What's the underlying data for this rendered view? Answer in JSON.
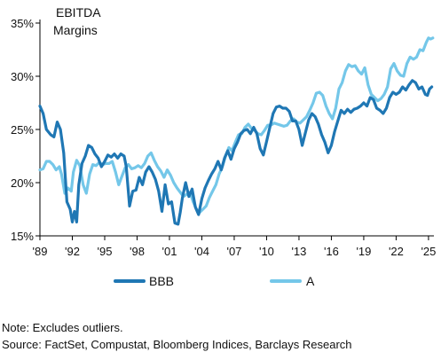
{
  "colors": {
    "background": "#ffffff",
    "axis": "#000000",
    "text": "#111111"
  },
  "notes": {
    "note": "Note: Excludes outliers.",
    "source": "Source: FactSet, Compustat, Bloomberg Indices, Barclays Research"
  },
  "chart_data": {
    "type": "line",
    "ylabel": "EBITDA Margins",
    "ylabel_lines": [
      "EBITDA",
      "Margins"
    ],
    "xlabel": "",
    "xlim": [
      1989,
      2025.5
    ],
    "ylim": [
      15,
      35
    ],
    "y_ticks": [
      15,
      20,
      25,
      30,
      35
    ],
    "y_tick_labels": [
      "15%",
      "20%",
      "25%",
      "30%",
      "35%"
    ],
    "x_ticks": [
      1989,
      1992,
      1995,
      1998,
      2001,
      2004,
      2007,
      2010,
      2013,
      2016,
      2019,
      2022,
      2025
    ],
    "x_tick_labels": [
      "'89",
      "'92",
      "'95",
      "'98",
      "'01",
      "'04",
      "'07",
      "'10",
      "'13",
      "'16",
      "'19",
      "'22",
      "'25"
    ],
    "grid": false,
    "legend": "bottom-center",
    "series": [
      {
        "name": "BBB",
        "color": "#1f77b4",
        "points": [
          [
            1989.0,
            27.2
          ],
          [
            1989.3,
            26.5
          ],
          [
            1989.6,
            25.0
          ],
          [
            1990.0,
            24.5
          ],
          [
            1990.3,
            24.3
          ],
          [
            1990.6,
            25.7
          ],
          [
            1990.9,
            25.0
          ],
          [
            1991.2,
            22.8
          ],
          [
            1991.5,
            18.2
          ],
          [
            1991.8,
            17.5
          ],
          [
            1992.0,
            16.3
          ],
          [
            1992.2,
            17.3
          ],
          [
            1992.4,
            16.3
          ],
          [
            1992.6,
            19.8
          ],
          [
            1992.9,
            21.8
          ],
          [
            1993.2,
            22.5
          ],
          [
            1993.5,
            23.5
          ],
          [
            1993.8,
            23.3
          ],
          [
            1994.1,
            22.7
          ],
          [
            1994.4,
            22.3
          ],
          [
            1994.7,
            21.5
          ],
          [
            1995.0,
            22.0
          ],
          [
            1995.3,
            22.6
          ],
          [
            1995.6,
            22.4
          ],
          [
            1995.9,
            22.7
          ],
          [
            1996.2,
            22.3
          ],
          [
            1996.5,
            22.7
          ],
          [
            1996.8,
            22.5
          ],
          [
            1997.0,
            21.5
          ],
          [
            1997.3,
            17.8
          ],
          [
            1997.6,
            19.2
          ],
          [
            1997.9,
            19.3
          ],
          [
            1998.2,
            20.5
          ],
          [
            1998.5,
            19.8
          ],
          [
            1998.8,
            21.0
          ],
          [
            1999.1,
            21.5
          ],
          [
            1999.4,
            21.0
          ],
          [
            1999.7,
            20.3
          ],
          [
            2000.0,
            19.2
          ],
          [
            2000.3,
            17.3
          ],
          [
            2000.6,
            19.8
          ],
          [
            2000.9,
            18.0
          ],
          [
            2001.2,
            18.2
          ],
          [
            2001.5,
            16.2
          ],
          [
            2001.8,
            16.1
          ],
          [
            2002.0,
            17.2
          ],
          [
            2002.2,
            18.6
          ],
          [
            2002.5,
            20.0
          ],
          [
            2002.8,
            18.7
          ],
          [
            2003.1,
            19.4
          ],
          [
            2003.4,
            17.7
          ],
          [
            2003.7,
            17.0
          ],
          [
            2004.0,
            18.5
          ],
          [
            2004.3,
            19.5
          ],
          [
            2004.6,
            20.2
          ],
          [
            2004.9,
            20.8
          ],
          [
            2005.2,
            21.3
          ],
          [
            2005.5,
            22.0
          ],
          [
            2005.8,
            21.2
          ],
          [
            2006.1,
            22.3
          ],
          [
            2006.4,
            23.0
          ],
          [
            2006.7,
            22.2
          ],
          [
            2007.0,
            23.2
          ],
          [
            2007.3,
            23.8
          ],
          [
            2007.6,
            24.6
          ],
          [
            2007.9,
            24.9
          ],
          [
            2008.2,
            25.0
          ],
          [
            2008.5,
            24.6
          ],
          [
            2008.8,
            25.2
          ],
          [
            2009.1,
            24.6
          ],
          [
            2009.4,
            23.2
          ],
          [
            2009.7,
            22.6
          ],
          [
            2010.0,
            23.9
          ],
          [
            2010.3,
            25.2
          ],
          [
            2010.6,
            26.5
          ],
          [
            2010.9,
            27.1
          ],
          [
            2011.2,
            27.2
          ],
          [
            2011.5,
            27.0
          ],
          [
            2011.8,
            27.0
          ],
          [
            2012.1,
            26.7
          ],
          [
            2012.4,
            25.8
          ],
          [
            2012.7,
            25.8
          ],
          [
            2013.0,
            25.0
          ],
          [
            2013.3,
            23.5
          ],
          [
            2013.6,
            24.7
          ],
          [
            2013.9,
            25.9
          ],
          [
            2014.2,
            26.5
          ],
          [
            2014.5,
            26.2
          ],
          [
            2014.8,
            25.5
          ],
          [
            2015.1,
            24.5
          ],
          [
            2015.4,
            23.8
          ],
          [
            2015.7,
            22.8
          ],
          [
            2016.0,
            23.5
          ],
          [
            2016.3,
            24.8
          ],
          [
            2016.6,
            25.8
          ],
          [
            2016.9,
            26.8
          ],
          [
            2017.2,
            26.5
          ],
          [
            2017.5,
            26.9
          ],
          [
            2017.8,
            26.6
          ],
          [
            2018.1,
            26.9
          ],
          [
            2018.4,
            27.0
          ],
          [
            2018.7,
            27.2
          ],
          [
            2019.0,
            27.5
          ],
          [
            2019.3,
            27.2
          ],
          [
            2019.6,
            28.0
          ],
          [
            2019.9,
            27.8
          ],
          [
            2020.2,
            27.0
          ],
          [
            2020.5,
            26.8
          ],
          [
            2020.8,
            26.5
          ],
          [
            2021.1,
            27.0
          ],
          [
            2021.4,
            28.0
          ],
          [
            2021.7,
            28.5
          ],
          [
            2022.0,
            28.3
          ],
          [
            2022.3,
            28.5
          ],
          [
            2022.6,
            29.0
          ],
          [
            2022.9,
            28.7
          ],
          [
            2023.2,
            29.2
          ],
          [
            2023.5,
            29.6
          ],
          [
            2023.8,
            29.4
          ],
          [
            2024.1,
            28.8
          ],
          [
            2024.4,
            29.0
          ],
          [
            2024.7,
            28.3
          ],
          [
            2024.9,
            28.2
          ],
          [
            2025.1,
            28.8
          ],
          [
            2025.3,
            29.0
          ]
        ]
      },
      {
        "name": "A",
        "color": "#74c7e9",
        "points": [
          [
            1989.0,
            21.2
          ],
          [
            1989.3,
            21.3
          ],
          [
            1989.6,
            22.0
          ],
          [
            1989.9,
            22.0
          ],
          [
            1990.2,
            21.7
          ],
          [
            1990.5,
            21.2
          ],
          [
            1990.8,
            21.5
          ],
          [
            1991.0,
            20.8
          ],
          [
            1991.3,
            19.0
          ],
          [
            1991.6,
            19.5
          ],
          [
            1991.9,
            19.2
          ],
          [
            1992.1,
            21.0
          ],
          [
            1992.4,
            22.1
          ],
          [
            1992.7,
            21.6
          ],
          [
            1993.0,
            19.8
          ],
          [
            1993.3,
            19.0
          ],
          [
            1993.6,
            20.8
          ],
          [
            1993.9,
            21.7
          ],
          [
            1994.2,
            21.6
          ],
          [
            1994.5,
            21.9
          ],
          [
            1994.8,
            21.7
          ],
          [
            1995.1,
            21.8
          ],
          [
            1995.4,
            21.8
          ],
          [
            1995.7,
            22.0
          ],
          [
            1996.0,
            21.0
          ],
          [
            1996.3,
            19.8
          ],
          [
            1996.6,
            20.6
          ],
          [
            1996.9,
            21.4
          ],
          [
            1997.2,
            21.7
          ],
          [
            1997.5,
            21.3
          ],
          [
            1997.8,
            21.4
          ],
          [
            1998.1,
            21.6
          ],
          [
            1998.4,
            21.4
          ],
          [
            1998.7,
            21.8
          ],
          [
            1999.0,
            22.5
          ],
          [
            1999.3,
            22.8
          ],
          [
            1999.6,
            22.1
          ],
          [
            1999.9,
            21.5
          ],
          [
            2000.2,
            21.1
          ],
          [
            2000.5,
            20.5
          ],
          [
            2000.8,
            21.2
          ],
          [
            2001.1,
            20.7
          ],
          [
            2001.4,
            20.0
          ],
          [
            2001.7,
            19.5
          ],
          [
            2002.0,
            19.1
          ],
          [
            2002.3,
            18.7
          ],
          [
            2002.6,
            18.9
          ],
          [
            2002.9,
            19.1
          ],
          [
            2003.2,
            18.2
          ],
          [
            2003.5,
            17.5
          ],
          [
            2003.8,
            17.2
          ],
          [
            2004.1,
            17.5
          ],
          [
            2004.4,
            17.8
          ],
          [
            2004.7,
            18.6
          ],
          [
            2005.0,
            19.2
          ],
          [
            2005.3,
            19.8
          ],
          [
            2005.6,
            20.8
          ],
          [
            2005.9,
            21.5
          ],
          [
            2006.2,
            22.5
          ],
          [
            2006.5,
            23.3
          ],
          [
            2006.8,
            23.0
          ],
          [
            2007.1,
            23.8
          ],
          [
            2007.4,
            24.5
          ],
          [
            2007.7,
            24.6
          ],
          [
            2008.0,
            25.2
          ],
          [
            2008.3,
            25.5
          ],
          [
            2008.6,
            25.1
          ],
          [
            2008.9,
            24.9
          ],
          [
            2009.2,
            24.6
          ],
          [
            2009.5,
            24.5
          ],
          [
            2009.8,
            24.9
          ],
          [
            2010.1,
            25.4
          ],
          [
            2010.4,
            25.4
          ],
          [
            2010.7,
            25.6
          ],
          [
            2011.0,
            25.5
          ],
          [
            2011.3,
            25.4
          ],
          [
            2011.6,
            25.3
          ],
          [
            2011.9,
            25.4
          ],
          [
            2012.2,
            25.8
          ],
          [
            2012.5,
            26.0
          ],
          [
            2012.8,
            25.7
          ],
          [
            2013.1,
            25.6
          ],
          [
            2013.4,
            25.9
          ],
          [
            2013.7,
            26.2
          ],
          [
            2014.0,
            26.8
          ],
          [
            2014.3,
            27.5
          ],
          [
            2014.6,
            28.4
          ],
          [
            2014.9,
            28.5
          ],
          [
            2015.2,
            28.2
          ],
          [
            2015.5,
            27.2
          ],
          [
            2015.8,
            26.5
          ],
          [
            2016.1,
            26.0
          ],
          [
            2016.4,
            27.0
          ],
          [
            2016.7,
            28.8
          ],
          [
            2017.0,
            29.4
          ],
          [
            2017.3,
            30.5
          ],
          [
            2017.6,
            31.1
          ],
          [
            2017.9,
            30.9
          ],
          [
            2018.2,
            31.0
          ],
          [
            2018.5,
            30.5
          ],
          [
            2018.8,
            30.2
          ],
          [
            2019.1,
            30.8
          ],
          [
            2019.4,
            29.2
          ],
          [
            2019.7,
            28.3
          ],
          [
            2020.0,
            28.0
          ],
          [
            2020.3,
            27.7
          ],
          [
            2020.6,
            27.9
          ],
          [
            2020.9,
            28.3
          ],
          [
            2021.2,
            29.0
          ],
          [
            2021.5,
            30.7
          ],
          [
            2021.8,
            31.2
          ],
          [
            2022.1,
            30.5
          ],
          [
            2022.4,
            30.1
          ],
          [
            2022.7,
            30.0
          ],
          [
            2023.0,
            31.2
          ],
          [
            2023.3,
            31.8
          ],
          [
            2023.6,
            31.6
          ],
          [
            2023.9,
            31.8
          ],
          [
            2024.2,
            32.5
          ],
          [
            2024.5,
            32.4
          ],
          [
            2024.8,
            33.2
          ],
          [
            2025.0,
            33.6
          ],
          [
            2025.2,
            33.5
          ],
          [
            2025.4,
            33.6
          ]
        ]
      }
    ]
  }
}
